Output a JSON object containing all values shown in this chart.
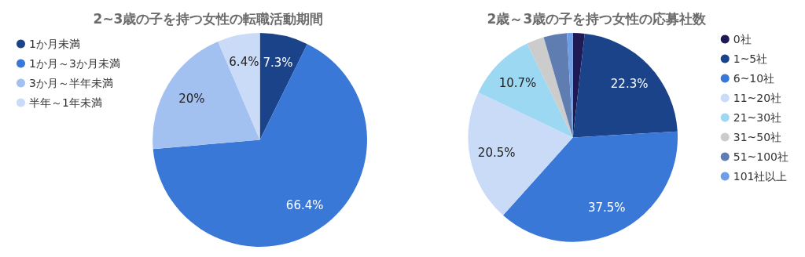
{
  "chart_data": [
    {
      "type": "pie",
      "title": "2~3歳の子を持つ女性の転職活動期間",
      "categories": [
        "1か月未満",
        "1か月～3か月未満",
        "3か月～半年未満",
        "半年～1年未満"
      ],
      "values": [
        7.3,
        66.4,
        20,
        6.4
      ],
      "colors": [
        "#1b4389",
        "#3a78d8",
        "#a2c0f0",
        "#c9dbf7"
      ],
      "value_labels": [
        "7.3%",
        "66.4%",
        "20%",
        "6.4%"
      ],
      "legend": "top left"
    },
    {
      "type": "pie",
      "title": "2歳～3歳の子を持つ女性の応募社数",
      "categories": [
        "0社",
        "1~5社",
        "6~10社",
        "11~20社",
        "21~30社",
        "31~50社",
        "51~100社",
        "101社以上"
      ],
      "values": [
        1.8,
        22.3,
        37.5,
        20.5,
        10.7,
        2.7,
        3.6,
        0.9
      ],
      "colors": [
        "#1f1a55",
        "#1b4389",
        "#3a78d8",
        "#c9dbf7",
        "#9dd8f2",
        "#cccccc",
        "#5f7db0",
        "#6f9ee8"
      ],
      "value_labels": [
        null,
        "22.3%",
        "37.5%",
        "20.5%",
        "10.7%",
        null,
        null,
        null
      ],
      "legend": "right"
    }
  ]
}
